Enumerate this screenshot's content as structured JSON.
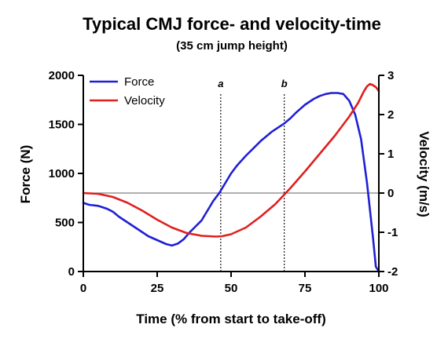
{
  "chart_data": {
    "type": "line",
    "title": "Typical CMJ force- and velocity-time",
    "subtitle": "(35 cm jump height)",
    "xlabel": "Time (% from start to take-off)",
    "ylabel": "Force (N)",
    "y2label": "Velocity  (m/s)",
    "xlim": [
      0,
      100
    ],
    "ylim": [
      0,
      2000
    ],
    "y2lim": [
      -2,
      3
    ],
    "x_ticks": [
      "0",
      "25",
      "50",
      "75",
      "100"
    ],
    "y_ticks": [
      "0",
      "500",
      "1000",
      "1500",
      "2000"
    ],
    "y2_ticks": [
      "-2",
      "-1",
      "0",
      "1",
      "2",
      "3"
    ],
    "legend_position": "top-left",
    "reference_line": {
      "axis": "y2",
      "value": 0,
      "color": "#808080"
    },
    "markers": [
      {
        "label": "a",
        "x": 46.5
      },
      {
        "label": "b",
        "x": 68
      }
    ],
    "series": [
      {
        "name": "Force",
        "axis": "y",
        "color": "#1f1fd6",
        "x": [
          0,
          2,
          5,
          8,
          10,
          12,
          15,
          18,
          20,
          22,
          25,
          28,
          30,
          32,
          34,
          36,
          38,
          40,
          42,
          44,
          46,
          48,
          50,
          52,
          55,
          58,
          60,
          62,
          64,
          66,
          68,
          70,
          72,
          75,
          78,
          80,
          82,
          84,
          86,
          88,
          90,
          92,
          94,
          96,
          98,
          99,
          100
        ],
        "values": [
          700,
          680,
          670,
          640,
          610,
          560,
          500,
          440,
          400,
          360,
          320,
          280,
          265,
          285,
          330,
          400,
          460,
          520,
          620,
          720,
          800,
          900,
          1000,
          1080,
          1180,
          1270,
          1330,
          1380,
          1430,
          1470,
          1510,
          1560,
          1620,
          1700,
          1760,
          1790,
          1810,
          1820,
          1820,
          1810,
          1740,
          1600,
          1350,
          900,
          350,
          50,
          0
        ]
      },
      {
        "name": "Velocity",
        "axis": "y2",
        "color": "#e01f1f",
        "x": [
          0,
          5,
          10,
          15,
          20,
          25,
          30,
          35,
          40,
          45,
          47,
          50,
          55,
          60,
          65,
          70,
          75,
          80,
          85,
          90,
          93,
          95,
          96,
          97,
          98,
          99,
          100
        ],
        "values": [
          0,
          -0.02,
          -0.1,
          -0.25,
          -0.45,
          -0.68,
          -0.88,
          -1.02,
          -1.09,
          -1.11,
          -1.1,
          -1.05,
          -0.88,
          -0.6,
          -0.28,
          0.12,
          0.55,
          1.0,
          1.45,
          1.95,
          2.3,
          2.6,
          2.72,
          2.78,
          2.75,
          2.7,
          2.6
        ]
      }
    ]
  }
}
